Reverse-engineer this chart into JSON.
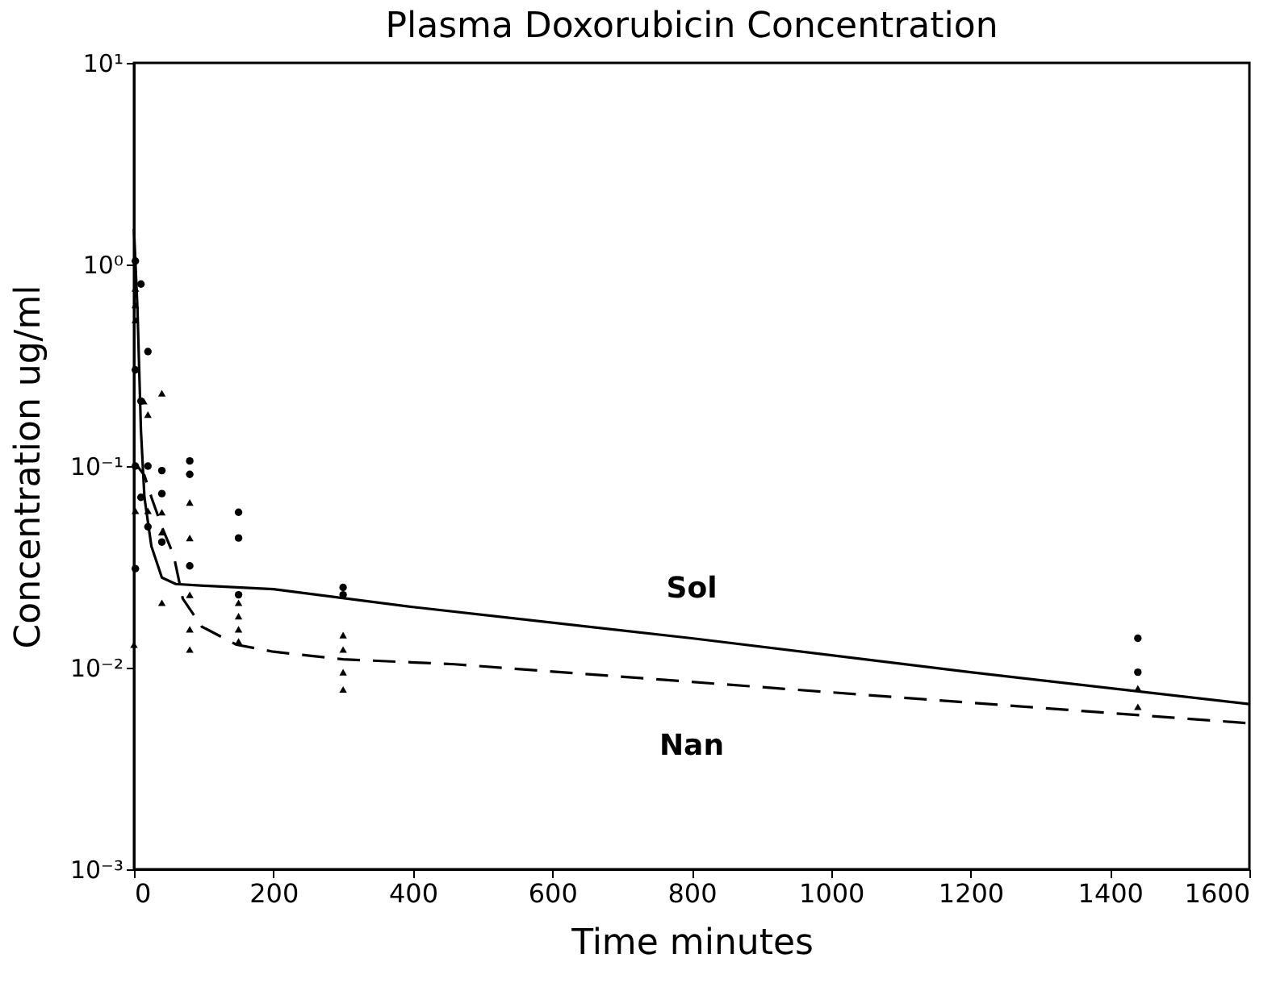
{
  "chart_data": {
    "type": "line",
    "title": "Plasma Doxorubicin Concentration",
    "xlabel": "Time minutes",
    "ylabel": "Concentration ug/ml",
    "log": "y",
    "grid": false,
    "xlim": [
      0,
      1600
    ],
    "xticks": [
      0,
      200,
      400,
      600,
      800,
      1000,
      1200,
      1400,
      1600
    ],
    "ylim": [
      0.001,
      10
    ],
    "yticks": [
      {
        "value": 10,
        "label": "10¹"
      },
      {
        "value": 1,
        "label": "10⁰"
      },
      {
        "value": 0.1,
        "label": "10⁻¹"
      },
      {
        "value": 0.01,
        "label": "10⁻²"
      },
      {
        "value": 0.001,
        "label": "10⁻³"
      }
    ],
    "series": [
      {
        "name": "Sol",
        "color": "#000000",
        "line_style": "solid",
        "marker": "none",
        "x": [
          0,
          5,
          10,
          15,
          25,
          40,
          60,
          100,
          200,
          400,
          800,
          1200,
          1600
        ],
        "values": [
          1.5,
          0.6,
          0.15,
          0.07,
          0.04,
          0.028,
          0.026,
          0.0255,
          0.0245,
          0.02,
          0.014,
          0.0095,
          0.0066
        ]
      },
      {
        "name": "Nan",
        "color": "#000000",
        "line_style": "dashed",
        "marker": "none",
        "x": [
          0,
          5,
          15,
          25,
          40,
          57,
          70,
          97,
          147,
          200,
          300,
          460,
          800,
          1200,
          1600
        ],
        "values": [
          0.1,
          0.1,
          0.09,
          0.07,
          0.05,
          0.036,
          0.022,
          0.016,
          0.013,
          0.012,
          0.011,
          0.0104,
          0.0085,
          0.0067,
          0.0053
        ]
      },
      {
        "type": "scatter",
        "color": "#000000",
        "marker": "circle",
        "x": [
          2,
          2,
          2,
          2,
          10,
          10,
          10,
          20,
          20,
          20,
          40,
          40,
          40,
          80,
          80,
          80,
          150,
          150,
          150,
          300,
          300,
          1440,
          1440
        ],
        "values": [
          1.04,
          0.3,
          0.1,
          0.031,
          0.8,
          0.21,
          0.07,
          0.37,
          0.1,
          0.05,
          0.095,
          0.073,
          0.042,
          0.106,
          0.091,
          0.032,
          0.059,
          0.044,
          0.023,
          0.025,
          0.023,
          0.014,
          0.0095
        ]
      },
      {
        "type": "scatter",
        "color": "#000000",
        "marker": "triangle",
        "x": [
          2,
          2,
          2,
          2,
          0,
          14,
          20,
          20,
          40,
          40,
          40,
          40,
          80,
          80,
          80,
          80,
          80,
          150,
          150,
          150,
          150,
          300,
          300,
          300,
          300,
          1440,
          1440
        ],
        "values": [
          0.76,
          0.63,
          0.53,
          0.06,
          0.013,
          0.21,
          0.18,
          0.06,
          0.23,
          0.059,
          0.047,
          0.021,
          0.066,
          0.044,
          0.023,
          0.0155,
          0.0123,
          0.021,
          0.018,
          0.0155,
          0.0135,
          0.0145,
          0.0123,
          0.0095,
          0.0078,
          0.0079,
          0.0064
        ]
      }
    ]
  }
}
